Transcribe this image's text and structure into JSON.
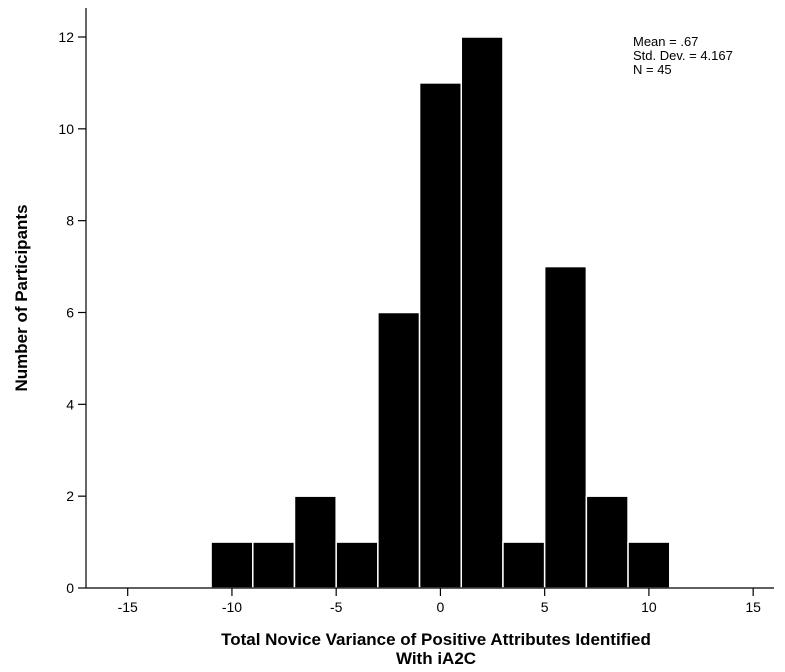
{
  "chart_data": {
    "type": "bar",
    "subtype": "histogram",
    "xlabel_lines": [
      "Total Novice Variance of Positive Attributes Identified",
      "With iA2C"
    ],
    "ylabel": "Number of Participants",
    "bins": [
      {
        "start": -11,
        "end": -9,
        "count": 1
      },
      {
        "start": -9,
        "end": -7,
        "count": 1
      },
      {
        "start": -7,
        "end": -5,
        "count": 2
      },
      {
        "start": -5,
        "end": -3,
        "count": 1
      },
      {
        "start": -3,
        "end": -1,
        "count": 6
      },
      {
        "start": -1,
        "end": 1,
        "count": 11
      },
      {
        "start": 1,
        "end": 3,
        "count": 12
      },
      {
        "start": 3,
        "end": 5,
        "count": 1
      },
      {
        "start": 5,
        "end": 7,
        "count": 7
      },
      {
        "start": 7,
        "end": 9,
        "count": 2
      },
      {
        "start": 9,
        "end": 11,
        "count": 1
      }
    ],
    "xlim": [
      -17,
      16
    ],
    "ylim": [
      0,
      12.6
    ],
    "x_ticks": [
      -15,
      -10,
      -5,
      0,
      5,
      10,
      15
    ],
    "y_ticks": [
      0,
      2,
      4,
      6,
      8,
      10,
      12
    ],
    "stats": [
      "Mean = .67",
      "Std. Dev. = 4.167",
      "N = 45"
    ],
    "stats_position": "top-right",
    "grid": false,
    "bar_color": "#000000",
    "bar_edge_color": "#ffffff"
  }
}
